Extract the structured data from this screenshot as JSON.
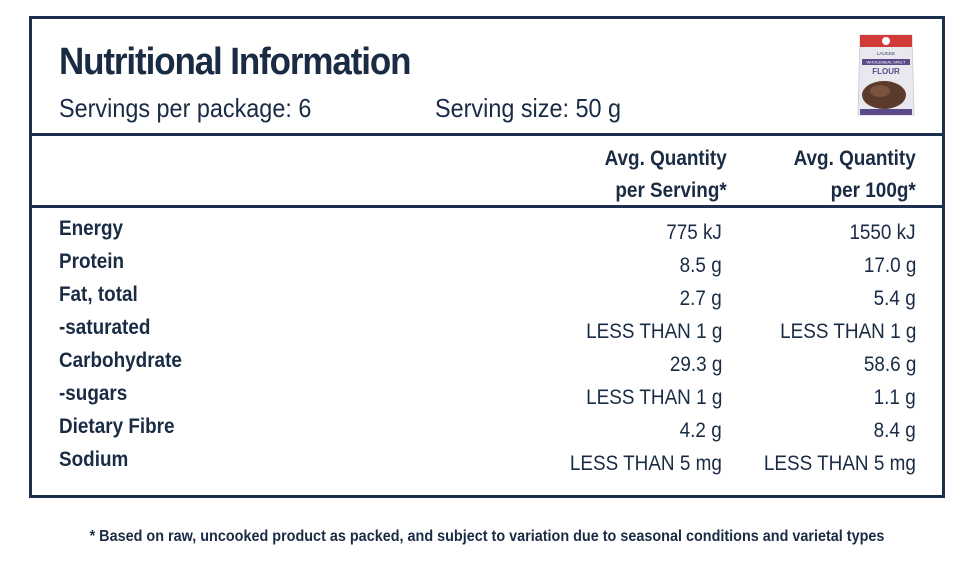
{
  "title": "Nutritional Information",
  "servings_per_package": "Servings per package: 6",
  "serving_size": "Serving size: 50 g",
  "product_image": {
    "brand_text": "LAUCKE",
    "product_text": "WHOLEMEAL SPELT",
    "flour_text": "FLOUR",
    "colors": {
      "pack": "#e8e8ee",
      "band": "#5b4a8a",
      "top": "#d23a3a",
      "brownie": "#5a3a2a"
    }
  },
  "columns": {
    "per_serving_line1": "Avg. Quantity",
    "per_serving_line2": "per Serving*",
    "per_100g_line1": "Avg. Quantity",
    "per_100g_line2": "per 100g*"
  },
  "rows": [
    {
      "nutrient": "Energy",
      "per_serving": "775 kJ",
      "per_100g": "1550 kJ"
    },
    {
      "nutrient": "Protein",
      "per_serving": "8.5 g",
      "per_100g": "17.0 g"
    },
    {
      "nutrient": "Fat, total",
      "per_serving": "2.7 g",
      "per_100g": "5.4 g"
    },
    {
      "nutrient": "-saturated",
      "per_serving": "LESS THAN 1 g",
      "per_100g": "LESS THAN 1 g"
    },
    {
      "nutrient": "Carbohydrate",
      "per_serving": "29.3 g",
      "per_100g": "58.6 g"
    },
    {
      "nutrient": "-sugars",
      "per_serving": "LESS THAN 1 g",
      "per_100g": "1.1 g"
    },
    {
      "nutrient": "Dietary Fibre",
      "per_serving": "4.2 g",
      "per_100g": "8.4 g"
    },
    {
      "nutrient": "Sodium",
      "per_serving": "LESS THAN 5 mg",
      "per_100g": "LESS THAN 5 mg"
    }
  ],
  "footnote": "* Based on raw, uncooked product as packed, and subject to variation due to seasonal conditions and varietal types",
  "colors": {
    "primary": "#1d2f4e",
    "text": "#1a2b44"
  }
}
